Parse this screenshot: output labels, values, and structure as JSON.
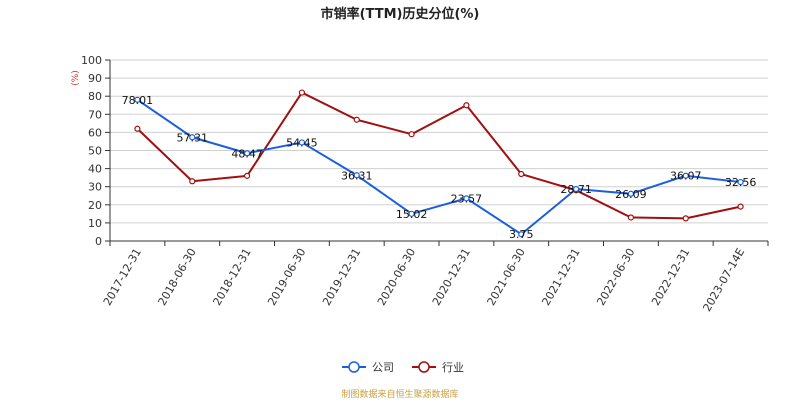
{
  "chart_data": {
    "type": "line",
    "title": "市销率(TTM)历史分位(%)",
    "ylabel": "(%)",
    "ylim": [
      0,
      100
    ],
    "yticks": [
      0,
      10,
      20,
      30,
      40,
      50,
      60,
      70,
      80,
      90,
      100
    ],
    "categories": [
      "2017-12-31",
      "2018-06-30",
      "2018-12-31",
      "2019-06-30",
      "2019-12-31",
      "2020-06-30",
      "2020-12-31",
      "2021-06-30",
      "2021-12-31",
      "2022-06-30",
      "2022-12-31",
      "2023-07-14E"
    ],
    "series": [
      {
        "name": "公司",
        "color": "#1a5fe0",
        "values": [
          78.01,
          57.31,
          48.47,
          54.45,
          36.31,
          15.02,
          23.57,
          3.75,
          28.71,
          26.09,
          36.07,
          32.56
        ],
        "labels": [
          "78.01",
          "57.31",
          "48.47",
          "54.45",
          "36.31",
          "15.02",
          "23.57",
          "3.75",
          "28.71",
          "26.09",
          "36.07",
          "32.56"
        ]
      },
      {
        "name": "行业",
        "color": "#a01010",
        "values": [
          62,
          33,
          36,
          82,
          67,
          59,
          75,
          37,
          28,
          13,
          12.5,
          19
        ]
      }
    ],
    "grid": true,
    "legend": "bottom-center"
  },
  "footer": "制图数据来自恒生聚源数据库"
}
